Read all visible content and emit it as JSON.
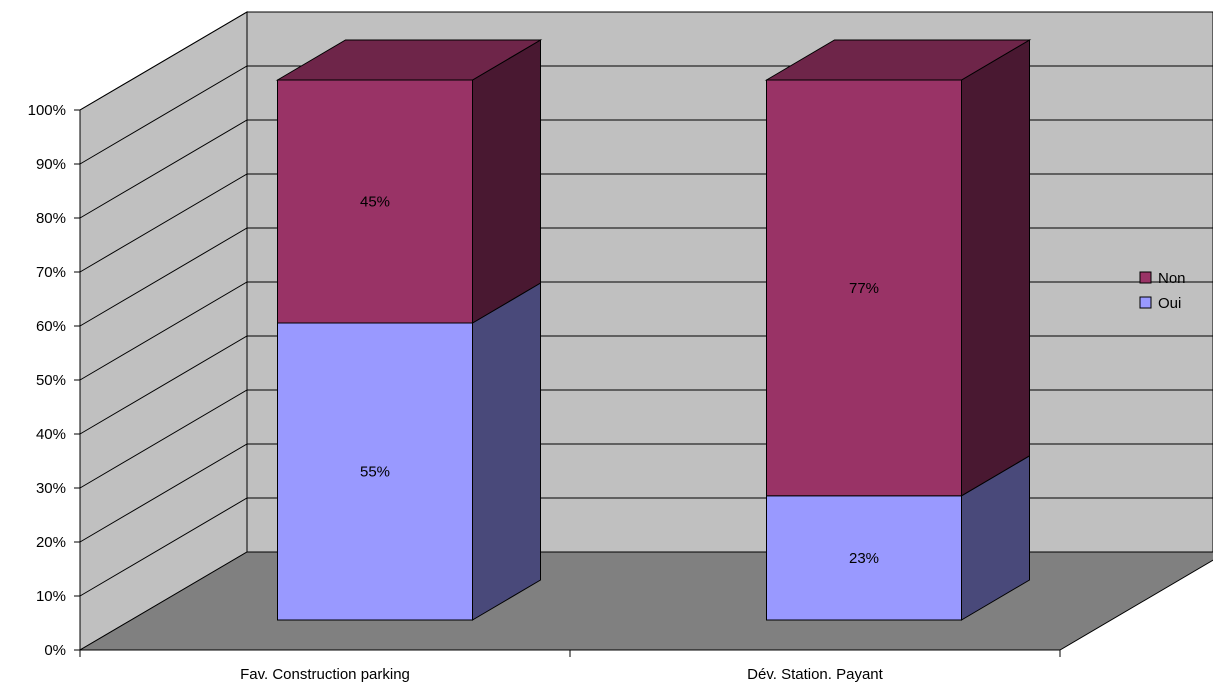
{
  "chart_data": {
    "type": "bar",
    "stacked": true,
    "percent_stacked": true,
    "three_d": true,
    "title": "",
    "xlabel": "",
    "ylabel": "",
    "categories": [
      "Fav. Construction parking",
      "Dév. Station. Payant"
    ],
    "series": [
      {
        "name": "Oui",
        "values": [
          55,
          23
        ],
        "labels": [
          "55%",
          "23%"
        ],
        "color": "#9999ff"
      },
      {
        "name": "Non",
        "values": [
          45,
          77
        ],
        "labels": [
          "45%",
          "77%"
        ],
        "color": "#993366"
      }
    ],
    "ylim": [
      0,
      100
    ],
    "y_ticks": [
      "0%",
      "10%",
      "20%",
      "30%",
      "40%",
      "50%",
      "60%",
      "70%",
      "80%",
      "90%",
      "100%"
    ],
    "grid": true,
    "legend": {
      "position": "right",
      "entries": [
        {
          "name": "Non",
          "color": "#993366"
        },
        {
          "name": "Oui",
          "color": "#9999ff"
        }
      ]
    },
    "colors": {
      "back_wall": "#c0c0c0",
      "floor": "#808080",
      "side_wall": "#c0c0c0"
    }
  }
}
